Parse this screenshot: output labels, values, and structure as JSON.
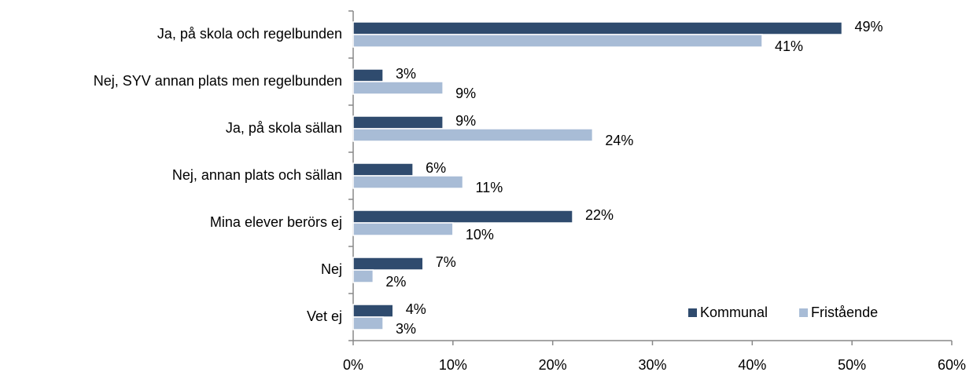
{
  "chart_data": {
    "type": "bar",
    "orientation": "horizontal",
    "categories": [
      "Ja, på skola och regelbunden",
      "Nej, SYV annan plats men regelbunden",
      "Ja, på skola sällan",
      "Nej, annan plats och sällan",
      "Mina elever berörs ej",
      "Nej",
      "Vet ej"
    ],
    "series": [
      {
        "name": "Kommunal",
        "color": "#2f4b6e",
        "values": [
          49,
          3,
          9,
          6,
          22,
          7,
          4
        ],
        "value_labels": [
          "49%",
          "3%",
          "9%",
          "6%",
          "22%",
          "7%",
          "4%"
        ]
      },
      {
        "name": "Fristående",
        "color": "#a8bcd6",
        "values": [
          41,
          9,
          24,
          11,
          10,
          2,
          3
        ],
        "value_labels": [
          "41%",
          "9%",
          "24%",
          "11%",
          "10%",
          "2%",
          "3%"
        ]
      }
    ],
    "xlim": [
      0,
      60
    ],
    "xticks": [
      {
        "value": 0,
        "label": "0%"
      },
      {
        "value": 10,
        "label": "10%"
      },
      {
        "value": 20,
        "label": "20%"
      },
      {
        "value": 30,
        "label": "30%"
      },
      {
        "value": 40,
        "label": "40%"
      },
      {
        "value": 50,
        "label": "50%"
      },
      {
        "value": 60,
        "label": "60%"
      }
    ],
    "legend": "lower right"
  }
}
